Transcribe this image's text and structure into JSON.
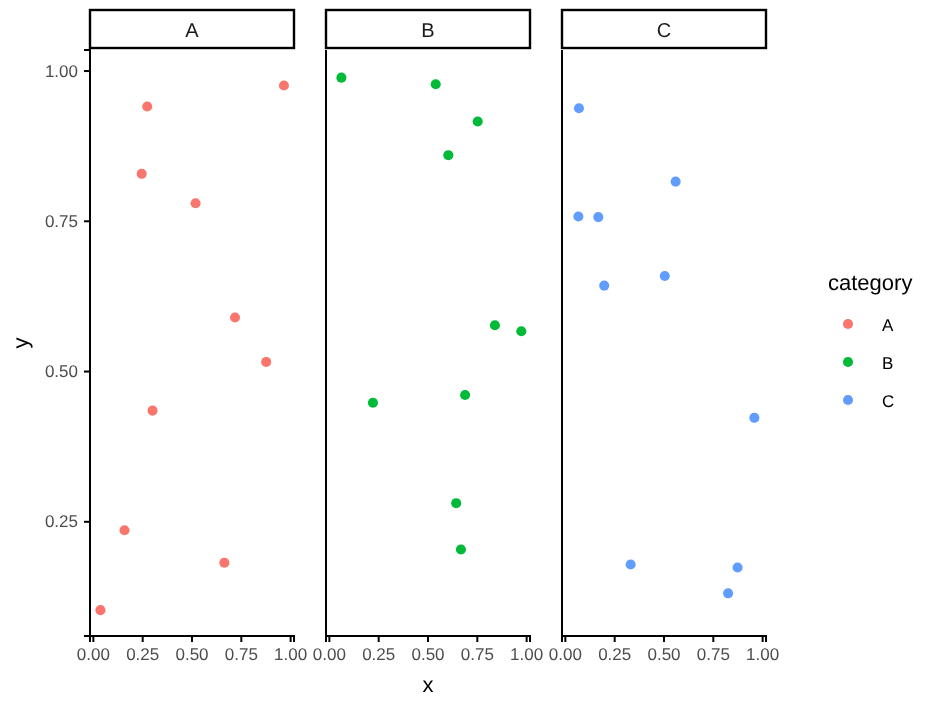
{
  "chart_data": [
    {
      "type": "scatter",
      "title": "A",
      "ylabel": "y",
      "marker": "circle",
      "grid": false,
      "xlim": [
        -0.017,
        1.017
      ],
      "ylim": [
        0.06,
        1.035
      ],
      "xticks": [
        {
          "value": 0,
          "label": "0.00"
        },
        {
          "value": 0.25,
          "label": "0.25"
        },
        {
          "value": 0.5,
          "label": "0.50"
        },
        {
          "value": 0.75,
          "label": "0.75"
        },
        {
          "value": 1,
          "label": "1.00"
        }
      ],
      "yticks": [
        {
          "value": 0.25,
          "label": "0.25"
        },
        {
          "value": 0.5,
          "label": "0.50"
        },
        {
          "value": 0.75,
          "label": "0.75"
        },
        {
          "value": 1,
          "label": "1.00"
        }
      ],
      "series": [
        {
          "name": "A",
          "color": "#f8766d",
          "x": [
            0.966,
            0.273,
            0.245,
            0.518,
            0.718,
            0.876,
            0.3,
            0.158,
            0.664,
            0.036
          ],
          "values": [
            0.976,
            0.941,
            0.829,
            0.78,
            0.59,
            0.516,
            0.435,
            0.236,
            0.182,
            0.103
          ]
        }
      ]
    },
    {
      "type": "scatter",
      "title": "B",
      "xlabel": "x",
      "marker": "circle",
      "grid": false,
      "tick_labels": "x",
      "xlim": [
        -0.017,
        1.017
      ],
      "ylim": [
        0.06,
        1.035
      ],
      "xticks": [
        {
          "value": 0,
          "label": "0.00"
        },
        {
          "value": 0.25,
          "label": "0.25"
        },
        {
          "value": 0.5,
          "label": "0.50"
        },
        {
          "value": 0.75,
          "label": "0.75"
        },
        {
          "value": 1,
          "label": "1.00"
        }
      ],
      "series": [
        {
          "name": "B",
          "color": "#00ba38",
          "x": [
            0.061,
            0.539,
            0.752,
            0.603,
            0.839,
            0.973,
            0.221,
            0.688,
            0.643,
            0.667
          ],
          "values": [
            0.989,
            0.978,
            0.916,
            0.86,
            0.577,
            0.567,
            0.448,
            0.461,
            0.281,
            0.204
          ]
        }
      ]
    },
    {
      "type": "scatter",
      "title": "C",
      "legend_title": "category",
      "legend": "right",
      "marker": "circle",
      "grid": false,
      "tick_labels": "x",
      "xlim": [
        -0.017,
        1.017
      ],
      "ylim": [
        0.06,
        1.035
      ],
      "xticks": [
        {
          "value": 0,
          "label": "0.00"
        },
        {
          "value": 0.25,
          "label": "0.25"
        },
        {
          "value": 0.5,
          "label": "0.50"
        },
        {
          "value": 0.75,
          "label": "0.75"
        },
        {
          "value": 1,
          "label": "1.00"
        }
      ],
      "series": [
        {
          "name": "C",
          "color": "#619cff",
          "x": [
            0.069,
            0.559,
            0.066,
            0.167,
            0.504,
            0.197,
            0.958,
            0.331,
            0.873,
            0.825
          ],
          "values": [
            0.938,
            0.816,
            0.758,
            0.757,
            0.659,
            0.643,
            0.423,
            0.179,
            0.174,
            0.131
          ]
        }
      ]
    }
  ]
}
